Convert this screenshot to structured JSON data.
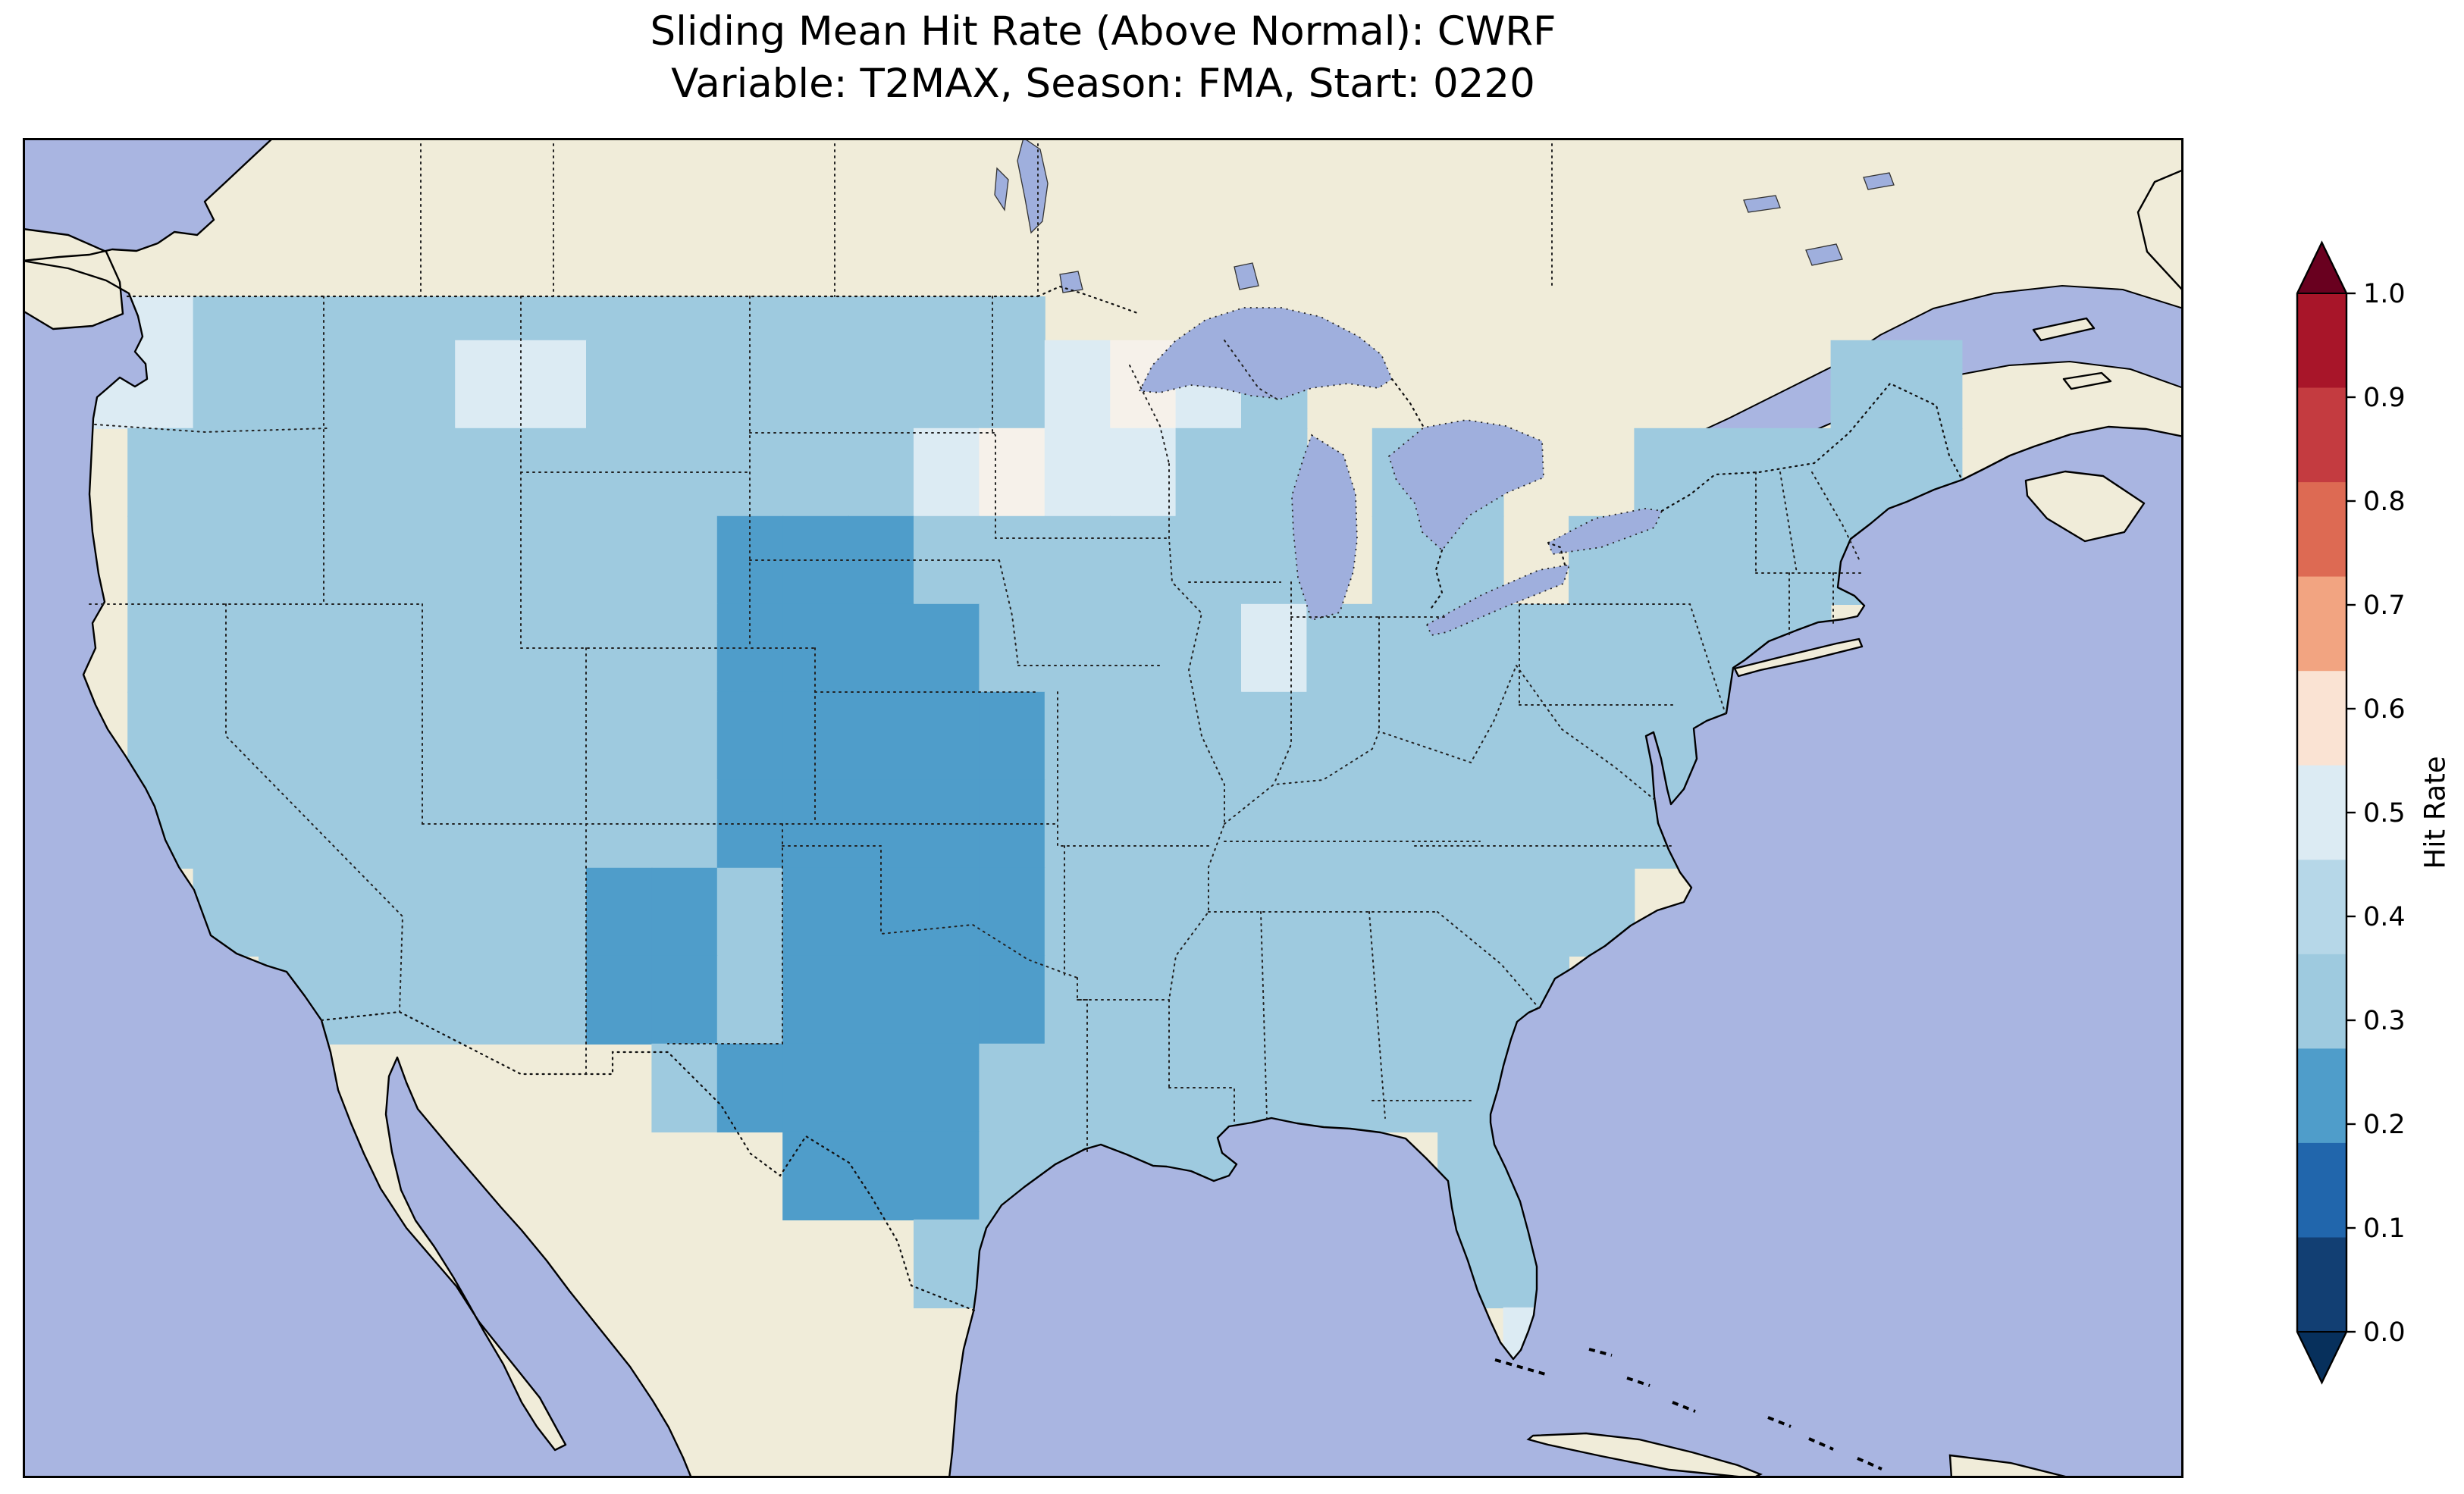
{
  "title": {
    "line1": "Sliding Mean Hit Rate (Above Normal): CWRF",
    "line2": "Variable: T2MAX, Season: FMA, Start: 0220"
  },
  "colorbar": {
    "label": "Hit Rate",
    "ticks_top_to_bottom": [
      "1.0",
      "0.9",
      "0.8",
      "0.7",
      "0.6",
      "0.5",
      "0.4",
      "0.3",
      "0.2",
      "0.1",
      "0.0"
    ],
    "bands_top_to_bottom": [
      "#a81529",
      "#c43b40",
      "#dd6a53",
      "#f2a481",
      "#fae3d3",
      "#dcebf3",
      "#b6d7e8",
      "#9ecadf",
      "#4f9dca",
      "#2166ac"
    ],
    "band_below_02": "#123f73",
    "extend_above_color": "#69001f",
    "extend_below_color": "#07305c"
  },
  "map": {
    "ocean_color": "#a9b5e1",
    "land_color": "#f0ecd9",
    "lake_color": "#9fafdd",
    "coastline_color": "#000000",
    "border_style": "dotted"
  },
  "chart_data": {
    "type": "heatmap",
    "title": "Sliding Mean Hit Rate (Above Normal): CWRF",
    "subtitle": "Variable: T2MAX, Season: FMA, Start: 0220",
    "model": "CWRF",
    "variable": "T2MAX",
    "season": "FMA",
    "start": "0220",
    "colorbar_label": "Hit Rate",
    "colorbar_ticks": [
      0.0,
      0.1,
      0.2,
      0.3,
      0.4,
      0.5,
      0.6,
      0.7,
      0.8,
      0.9,
      1.0
    ],
    "colorbar_range": [
      0,
      1
    ],
    "region": "Continental United States",
    "grid": {
      "lon_west": -125,
      "lon_step_deg": 2,
      "lat_north": 50,
      "lat_step_deg": 2,
      "note": "Each row string is one latitude band (north to south). Characters run west to east from 125W. '.' = no data (outside CONUS). Top row is clipped at the 49N border. Values are bin centers of the hit-rate color classes.",
      "value_key": {
        "2": 0.25,
        "3": 0.35,
        "4": 0.45,
        "5": 0.55,
        ".": null
      },
      "value_colors": {
        "2": "#4f9dca",
        "3": "#9ecadf",
        "4": "#dcebf3",
        "5": "#f6f1ea"
      },
      "rows": [
        "443333333333333..............",
        "4433334433333334543........33",
        ".333333333333454433.33..33333",
        ".333333333222333333.33.33333.",
        ".33333333322223333433333333..",
        ".3333333332222233333333333...",
        ".333333333222223333333333....",
        "..3333332232222333333333.....",
        "...33333223222233333333......",
        ".........32222333333333......",
        "...........22233333..33......",
        ".............33......33......",
        "......................4......"
      ]
    }
  }
}
